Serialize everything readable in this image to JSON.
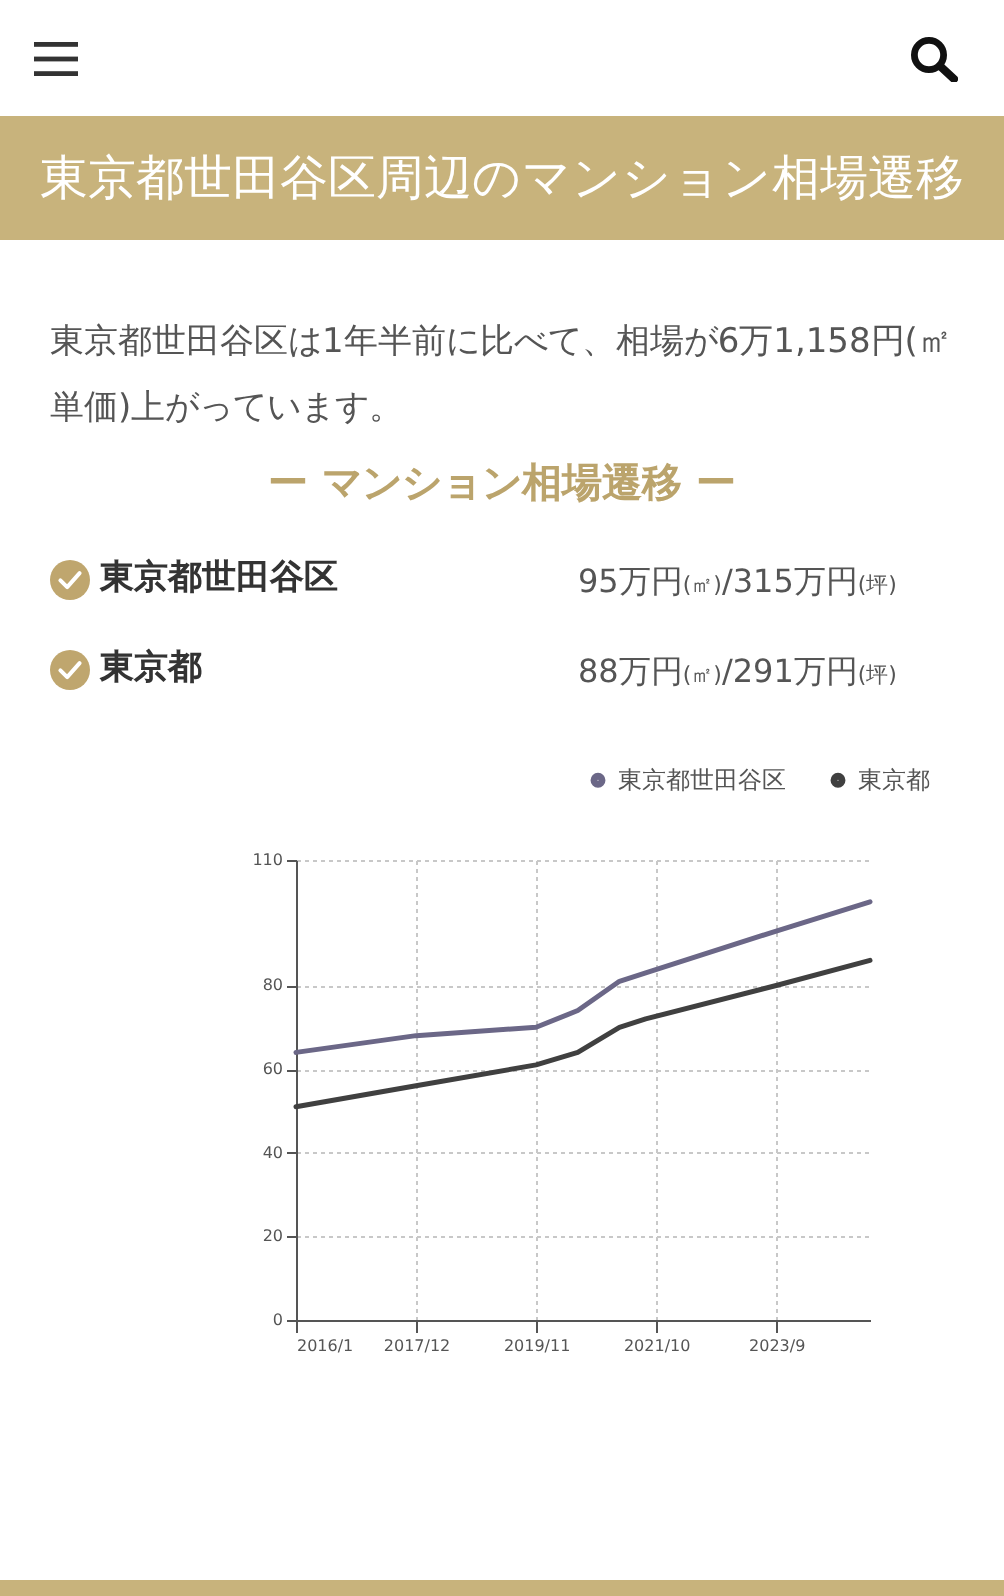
{
  "chart_data": {
    "type": "line",
    "title": "東京都世田谷区周辺のマンション相場遷移",
    "subtitle": "ー マンション相場遷移 ー",
    "annotations": [
      "東京都世田谷区は1年半前に比べて、相場が6万1,158円(㎡単価)上がっています。",
      "東京都世田谷区",
      "95万円(㎡)/315万円(坪)",
      "東京都",
      "88万円(㎡)/291万円(坪)"
    ],
    "x": [
      "2016-01",
      "2017-12",
      "2019-11",
      "2020-07",
      "2021-03",
      "2021-08",
      "2023-09",
      "2025-03"
    ],
    "series": [
      {
        "name": "東京都世田谷区",
        "color": "#6b6787",
        "values": [
          64,
          68,
          70,
          74,
          81,
          83,
          93,
          100
        ]
      },
      {
        "name": "東京都",
        "color": "#404040",
        "values": [
          51,
          56,
          61,
          64,
          70,
          72,
          80,
          86
        ]
      }
    ],
    "xlim": [
      "2016-01",
      "2025-03"
    ],
    "xticks": [
      {
        "value": "2016-01",
        "label": "2016/1"
      },
      {
        "value": "2017-12",
        "label": "2017/12"
      },
      {
        "value": "2019-11",
        "label": "2019/11"
      },
      {
        "value": "2021-10",
        "label": "2021/10"
      },
      {
        "value": "2023-09",
        "label": "2023/9"
      }
    ],
    "ylim": [
      0,
      110
    ],
    "yticks": [
      0,
      20,
      40,
      60,
      80,
      110
    ],
    "grid": true,
    "legend": "top right"
  }
}
